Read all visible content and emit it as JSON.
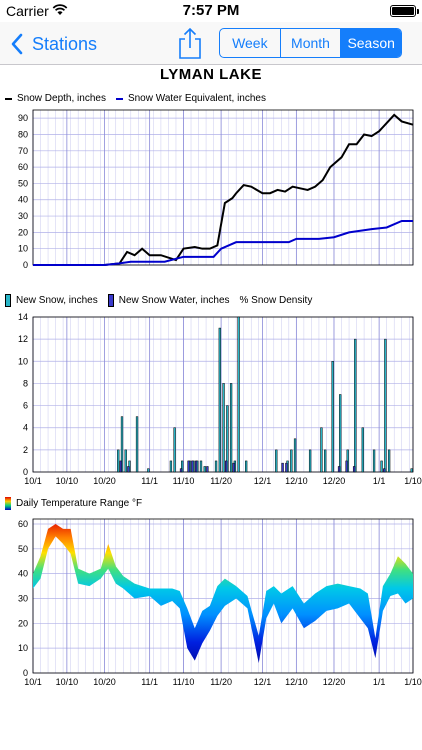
{
  "status": {
    "carrier": "Carrier",
    "time": "7:57 PM"
  },
  "nav": {
    "back_label": "Stations",
    "segments": [
      "Week",
      "Month",
      "Season"
    ],
    "active_segment": "Season"
  },
  "station": {
    "name": "LYMAN LAKE"
  },
  "colors": {
    "accent": "#157efb",
    "depth": "#000000",
    "swe": "#0000cc",
    "new_snow": "#29b6c8",
    "new_water": "#3a3acb"
  },
  "chart_data": [
    {
      "type": "line",
      "title": "",
      "x_ticks": [
        "10/1",
        "10/10",
        "10/20",
        "11/1",
        "11/10",
        "11/20",
        "12/1",
        "12/10",
        "12/20",
        "1/1",
        "1/10"
      ],
      "ylim": [
        0,
        95
      ],
      "y_ticks": [
        0,
        10,
        20,
        30,
        40,
        50,
        60,
        70,
        80,
        90
      ],
      "grid": true,
      "legend_position": "top-left",
      "series": [
        {
          "name": "Snow Depth, inches",
          "color": "#000000",
          "x": [
            "10/1",
            "10/10",
            "10/20",
            "10/24",
            "10/26",
            "10/28",
            "10/30",
            "11/1",
            "11/4",
            "11/8",
            "11/10",
            "11/13",
            "11/15",
            "11/17",
            "11/19",
            "11/21",
            "11/23",
            "11/24",
            "11/26",
            "11/28",
            "12/1",
            "12/3",
            "12/5",
            "12/7",
            "12/9",
            "12/11",
            "12/13",
            "12/15",
            "12/17",
            "12/19",
            "12/20",
            "12/22",
            "12/24",
            "12/26",
            "12/28",
            "12/30",
            "1/1",
            "1/3",
            "1/5",
            "1/7",
            "1/10"
          ],
          "values": [
            0,
            0,
            0,
            1,
            8,
            6,
            10,
            6,
            6,
            3,
            10,
            11,
            10,
            10,
            12,
            38,
            41,
            44,
            49,
            48,
            44,
            44,
            46,
            45,
            48,
            47,
            46,
            48,
            52,
            60,
            62,
            66,
            74,
            74,
            80,
            79,
            82,
            87,
            92,
            88,
            86
          ]
        },
        {
          "name": "Snow Water Equivalent, inches",
          "color": "#0000cc",
          "x": [
            "10/1",
            "10/10",
            "10/20",
            "10/24",
            "10/27",
            "11/1",
            "11/5",
            "11/10",
            "11/14",
            "11/18",
            "11/20",
            "11/24",
            "12/1",
            "12/8",
            "12/10",
            "12/16",
            "12/20",
            "12/24",
            "12/30",
            "1/3",
            "1/7",
            "1/10"
          ],
          "values": [
            0,
            0,
            0,
            1,
            2,
            2,
            2,
            5,
            5,
            5,
            10,
            14,
            14,
            14,
            16,
            16,
            17,
            20,
            22,
            23,
            27,
            27
          ]
        }
      ]
    },
    {
      "type": "bar",
      "x_ticks": [
        "10/1",
        "10/10",
        "10/20",
        "11/1",
        "11/10",
        "11/20",
        "12/1",
        "12/10",
        "12/20",
        "1/1",
        "1/10"
      ],
      "ylim": [
        0,
        14
      ],
      "y_ticks": [
        0,
        2,
        4,
        6,
        8,
        10,
        12,
        14
      ],
      "grid": true,
      "legend_position": "top-left",
      "legend": [
        "New Snow, inches",
        "New Snow Water, inches",
        "% Snow Density"
      ],
      "series": [
        {
          "name": "New Snow, inches",
          "x": [
            "10/24",
            "10/25",
            "10/26",
            "10/27",
            "10/29",
            "11/1",
            "11/7",
            "11/8",
            "11/10",
            "11/12",
            "11/13",
            "11/14",
            "11/15",
            "11/16",
            "11/19",
            "11/20",
            "11/21",
            "11/22",
            "11/23",
            "11/24",
            "11/25",
            "11/27",
            "12/5",
            "12/8",
            "12/9",
            "12/10",
            "12/14",
            "12/17",
            "12/18",
            "12/20",
            "12/22",
            "12/24",
            "12/26",
            "12/28",
            "12/31",
            "1/2",
            "1/3",
            "1/4",
            "1/10"
          ],
          "values": [
            2,
            5,
            2,
            1,
            5,
            0.3,
            1,
            4,
            1,
            1,
            1,
            1,
            1,
            0.5,
            1,
            13,
            8,
            6,
            8,
            1,
            14,
            1,
            2,
            1,
            2,
            3,
            2,
            4,
            2,
            10,
            7,
            2,
            12,
            4,
            2,
            1,
            12,
            2,
            0.3
          ]
        },
        {
          "name": "New Snow Water, inches",
          "x": [
            "10/24",
            "10/26",
            "11/9",
            "11/11",
            "11/12",
            "11/13",
            "11/16",
            "11/21",
            "11/23",
            "12/6",
            "12/7",
            "12/21",
            "12/23",
            "12/25",
            "1/2"
          ],
          "values": [
            1,
            0.5,
            0.3,
            1,
            1,
            1,
            0.5,
            1,
            0.8,
            0.8,
            0.8,
            0.5,
            1,
            0.5,
            0.3
          ]
        }
      ]
    },
    {
      "type": "area",
      "title": "Daily Temperature Range °F",
      "x_ticks": [
        "10/1",
        "10/10",
        "10/20",
        "11/1",
        "11/10",
        "11/20",
        "12/1",
        "12/10",
        "12/20",
        "1/1",
        "1/10"
      ],
      "ylim": [
        0,
        62
      ],
      "y_ticks": [
        0,
        10,
        20,
        30,
        40,
        50,
        60
      ],
      "grid": true,
      "legend_position": "top-left",
      "x": [
        "10/1",
        "10/3",
        "10/5",
        "10/7",
        "10/9",
        "10/11",
        "10/13",
        "10/16",
        "10/19",
        "10/21",
        "10/23",
        "10/25",
        "10/28",
        "11/1",
        "11/4",
        "11/7",
        "11/9",
        "11/11",
        "11/13",
        "11/15",
        "11/17",
        "11/19",
        "11/21",
        "11/24",
        "11/27",
        "11/30",
        "12/2",
        "12/4",
        "12/6",
        "12/9",
        "12/12",
        "12/15",
        "12/18",
        "12/21",
        "12/24",
        "12/27",
        "12/29",
        "12/31",
        "1/2",
        "1/4",
        "1/6",
        "1/8",
        "1/10"
      ],
      "low": [
        34,
        38,
        50,
        55,
        52,
        48,
        36,
        35,
        38,
        42,
        36,
        34,
        30,
        31,
        27,
        29,
        26,
        10,
        5,
        12,
        17,
        23,
        27,
        30,
        26,
        4,
        22,
        28,
        20,
        26,
        18,
        21,
        25,
        26,
        28,
        22,
        18,
        6,
        25,
        31,
        32,
        28,
        30
      ],
      "high": [
        40,
        47,
        58,
        60,
        58,
        58,
        42,
        40,
        42,
        52,
        43,
        39,
        36,
        34,
        34,
        34,
        33,
        26,
        18,
        25,
        27,
        35,
        38,
        35,
        31,
        15,
        33,
        35,
        32,
        35,
        28,
        32,
        35,
        36,
        35,
        34,
        32,
        14,
        35,
        40,
        47,
        44,
        40
      ]
    }
  ]
}
